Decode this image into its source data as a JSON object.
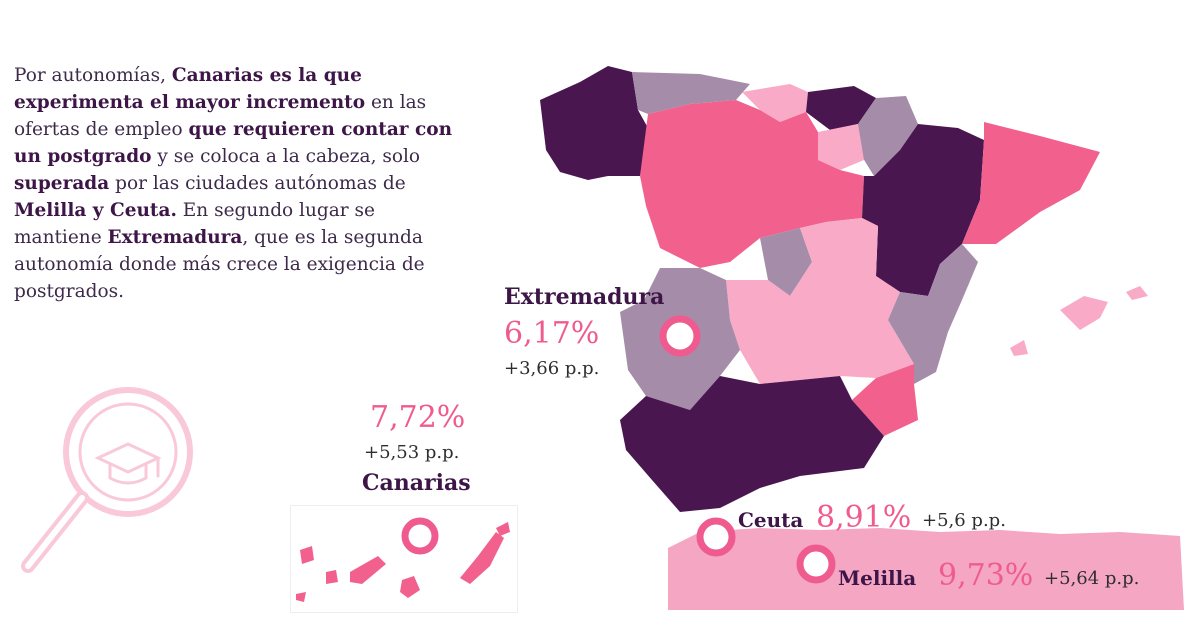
{
  "intro": [
    {
      "text": "Por autonomías, ",
      "bold": false
    },
    {
      "text": "Canarias es la que experimenta el mayor incremento",
      "bold": true
    },
    {
      "text": " en las ofertas de empleo ",
      "bold": false
    },
    {
      "text": "que requieren contar con un postgrado",
      "bold": true
    },
    {
      "text": " y se coloca a la cabeza, solo ",
      "bold": false
    },
    {
      "text": "superada",
      "bold": true
    },
    {
      "text": " por las ciudades autónomas de ",
      "bold": false
    },
    {
      "text": "Melilla y Ceuta.",
      "bold": true
    },
    {
      "text": " En segundo lugar se mantiene ",
      "bold": false
    },
    {
      "text": "Extremadura",
      "bold": true
    },
    {
      "text": ", que es la segunda autonomía donde más crece la exigencia de postgrados.",
      "bold": false
    }
  ],
  "regions": {
    "extremadura": {
      "name": "Extremadura",
      "value": "6,17%",
      "change": "+3,66 p.p."
    },
    "canarias": {
      "name": "Canarias",
      "value": "7,72%",
      "change": "+5,53 p.p."
    },
    "ceuta": {
      "name": "Ceuta",
      "value": "8,91%",
      "change": "+5,6 p.p."
    },
    "melilla": {
      "name": "Melilla",
      "value": "9,73%",
      "change": "+5,64 p.p."
    }
  },
  "colors": {
    "dark_purple": "#4a1650",
    "mauve": "#a58ca8",
    "hot_pink": "#f2608e",
    "light_pink": "#f9aac6",
    "marker_pink": "#ef5b8e",
    "text_purple": "#3d1647"
  },
  "icons": [
    "magnifier-graduation-cap-icon"
  ]
}
